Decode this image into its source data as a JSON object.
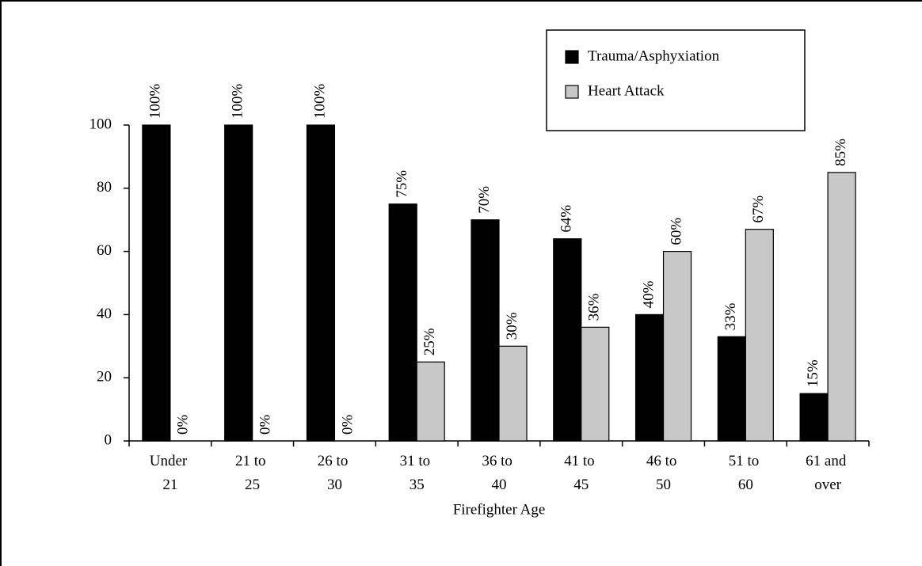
{
  "chart_data": {
    "type": "bar",
    "x_label": "Firefighter Age",
    "categories": [
      "Under 21",
      "21 to 25",
      "26 to 30",
      "31 to 35",
      "36 to 40",
      "41 to 45",
      "46 to 50",
      "51 to 60",
      "61 and over"
    ],
    "series": [
      {
        "name": "Trauma/Asphyxiation",
        "color": "#000000",
        "values": [
          100,
          100,
          100,
          75,
          70,
          64,
          40,
          33,
          15
        ],
        "value_labels": [
          "100%",
          "100%",
          "100%",
          "75%",
          "70%",
          "64%",
          "40%",
          "33%",
          "15%"
        ]
      },
      {
        "name": "Heart Attack",
        "color": "#c8c8c8",
        "values": [
          0,
          0,
          0,
          25,
          30,
          36,
          60,
          67,
          85
        ],
        "value_labels": [
          "0%",
          "0%",
          "0%",
          "25%",
          "30%",
          "36%",
          "60%",
          "67%",
          "85%"
        ]
      }
    ],
    "ylim": [
      0,
      100
    ],
    "yticks": [
      0,
      20,
      40,
      60,
      80,
      100
    ],
    "grid": false,
    "legend": "top-right"
  }
}
